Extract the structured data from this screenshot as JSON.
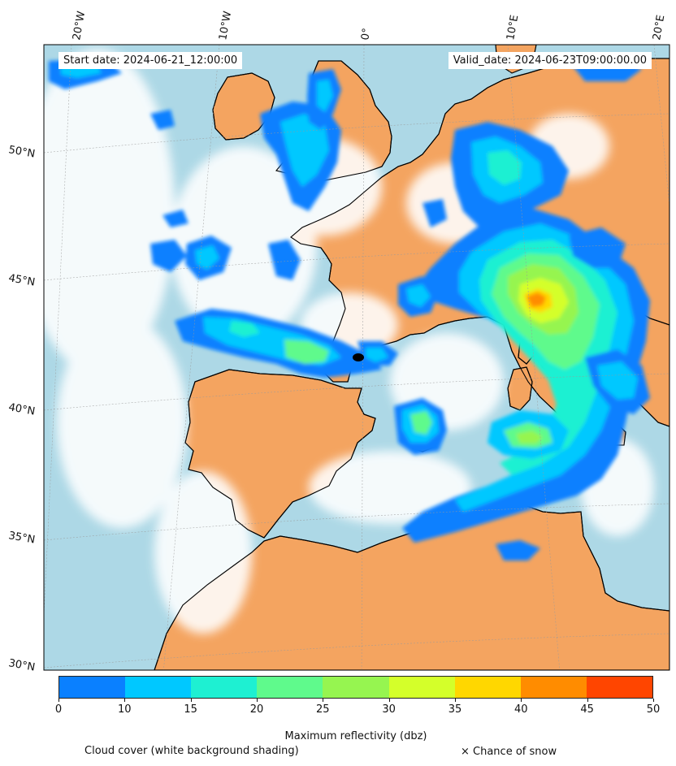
{
  "map": {
    "start_date": "Start date: 2024-06-21_12:00:00",
    "valid_date": "Valid_date: 2024-06-23T09:00:00.00",
    "lon_labels": [
      "20°W",
      "10°W",
      "0°",
      "10°E",
      "20°E"
    ],
    "lat_labels": [
      "50°N",
      "45°N",
      "40°N",
      "35°N",
      "30°N"
    ],
    "colors": {
      "land": "#f4a460",
      "sea": "#add8e6",
      "coast": "#000000",
      "grid": "#9a9a9a"
    }
  },
  "colorbar": {
    "label": "Maximum reflectivity (dbz)",
    "ticks": [
      "0",
      "10",
      "15",
      "20",
      "25",
      "30",
      "35",
      "40",
      "45",
      "50"
    ],
    "colors": [
      "#0a80ff",
      "#00c8ff",
      "#1ef0d2",
      "#5ffa8c",
      "#96f550",
      "#d4ff2a",
      "#ffd700",
      "#ff8c00",
      "#ff4500"
    ]
  },
  "notes": {
    "cloud_cover": "Cloud cover (white background shading)",
    "snow": "× Chance of snow"
  }
}
